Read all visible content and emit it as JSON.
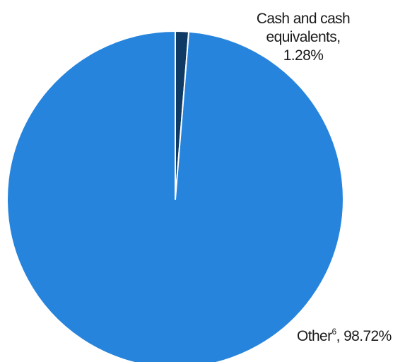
{
  "chart_data": {
    "type": "pie",
    "title": "",
    "slices": [
      {
        "name": "Cash and cash equivalents",
        "value": 1.28,
        "label_lines": [
          "Cash and cash",
          "equivalents,",
          "1.28%"
        ],
        "color": "#0e3a63"
      },
      {
        "name": "Other",
        "footnote": "6",
        "value": 98.72,
        "label_value": ", 98.72%",
        "color": "#2684dc"
      }
    ],
    "start_angle": "12 o'clock",
    "direction": "clockwise",
    "slice_border_color": "#ffffff",
    "legend": "none"
  }
}
